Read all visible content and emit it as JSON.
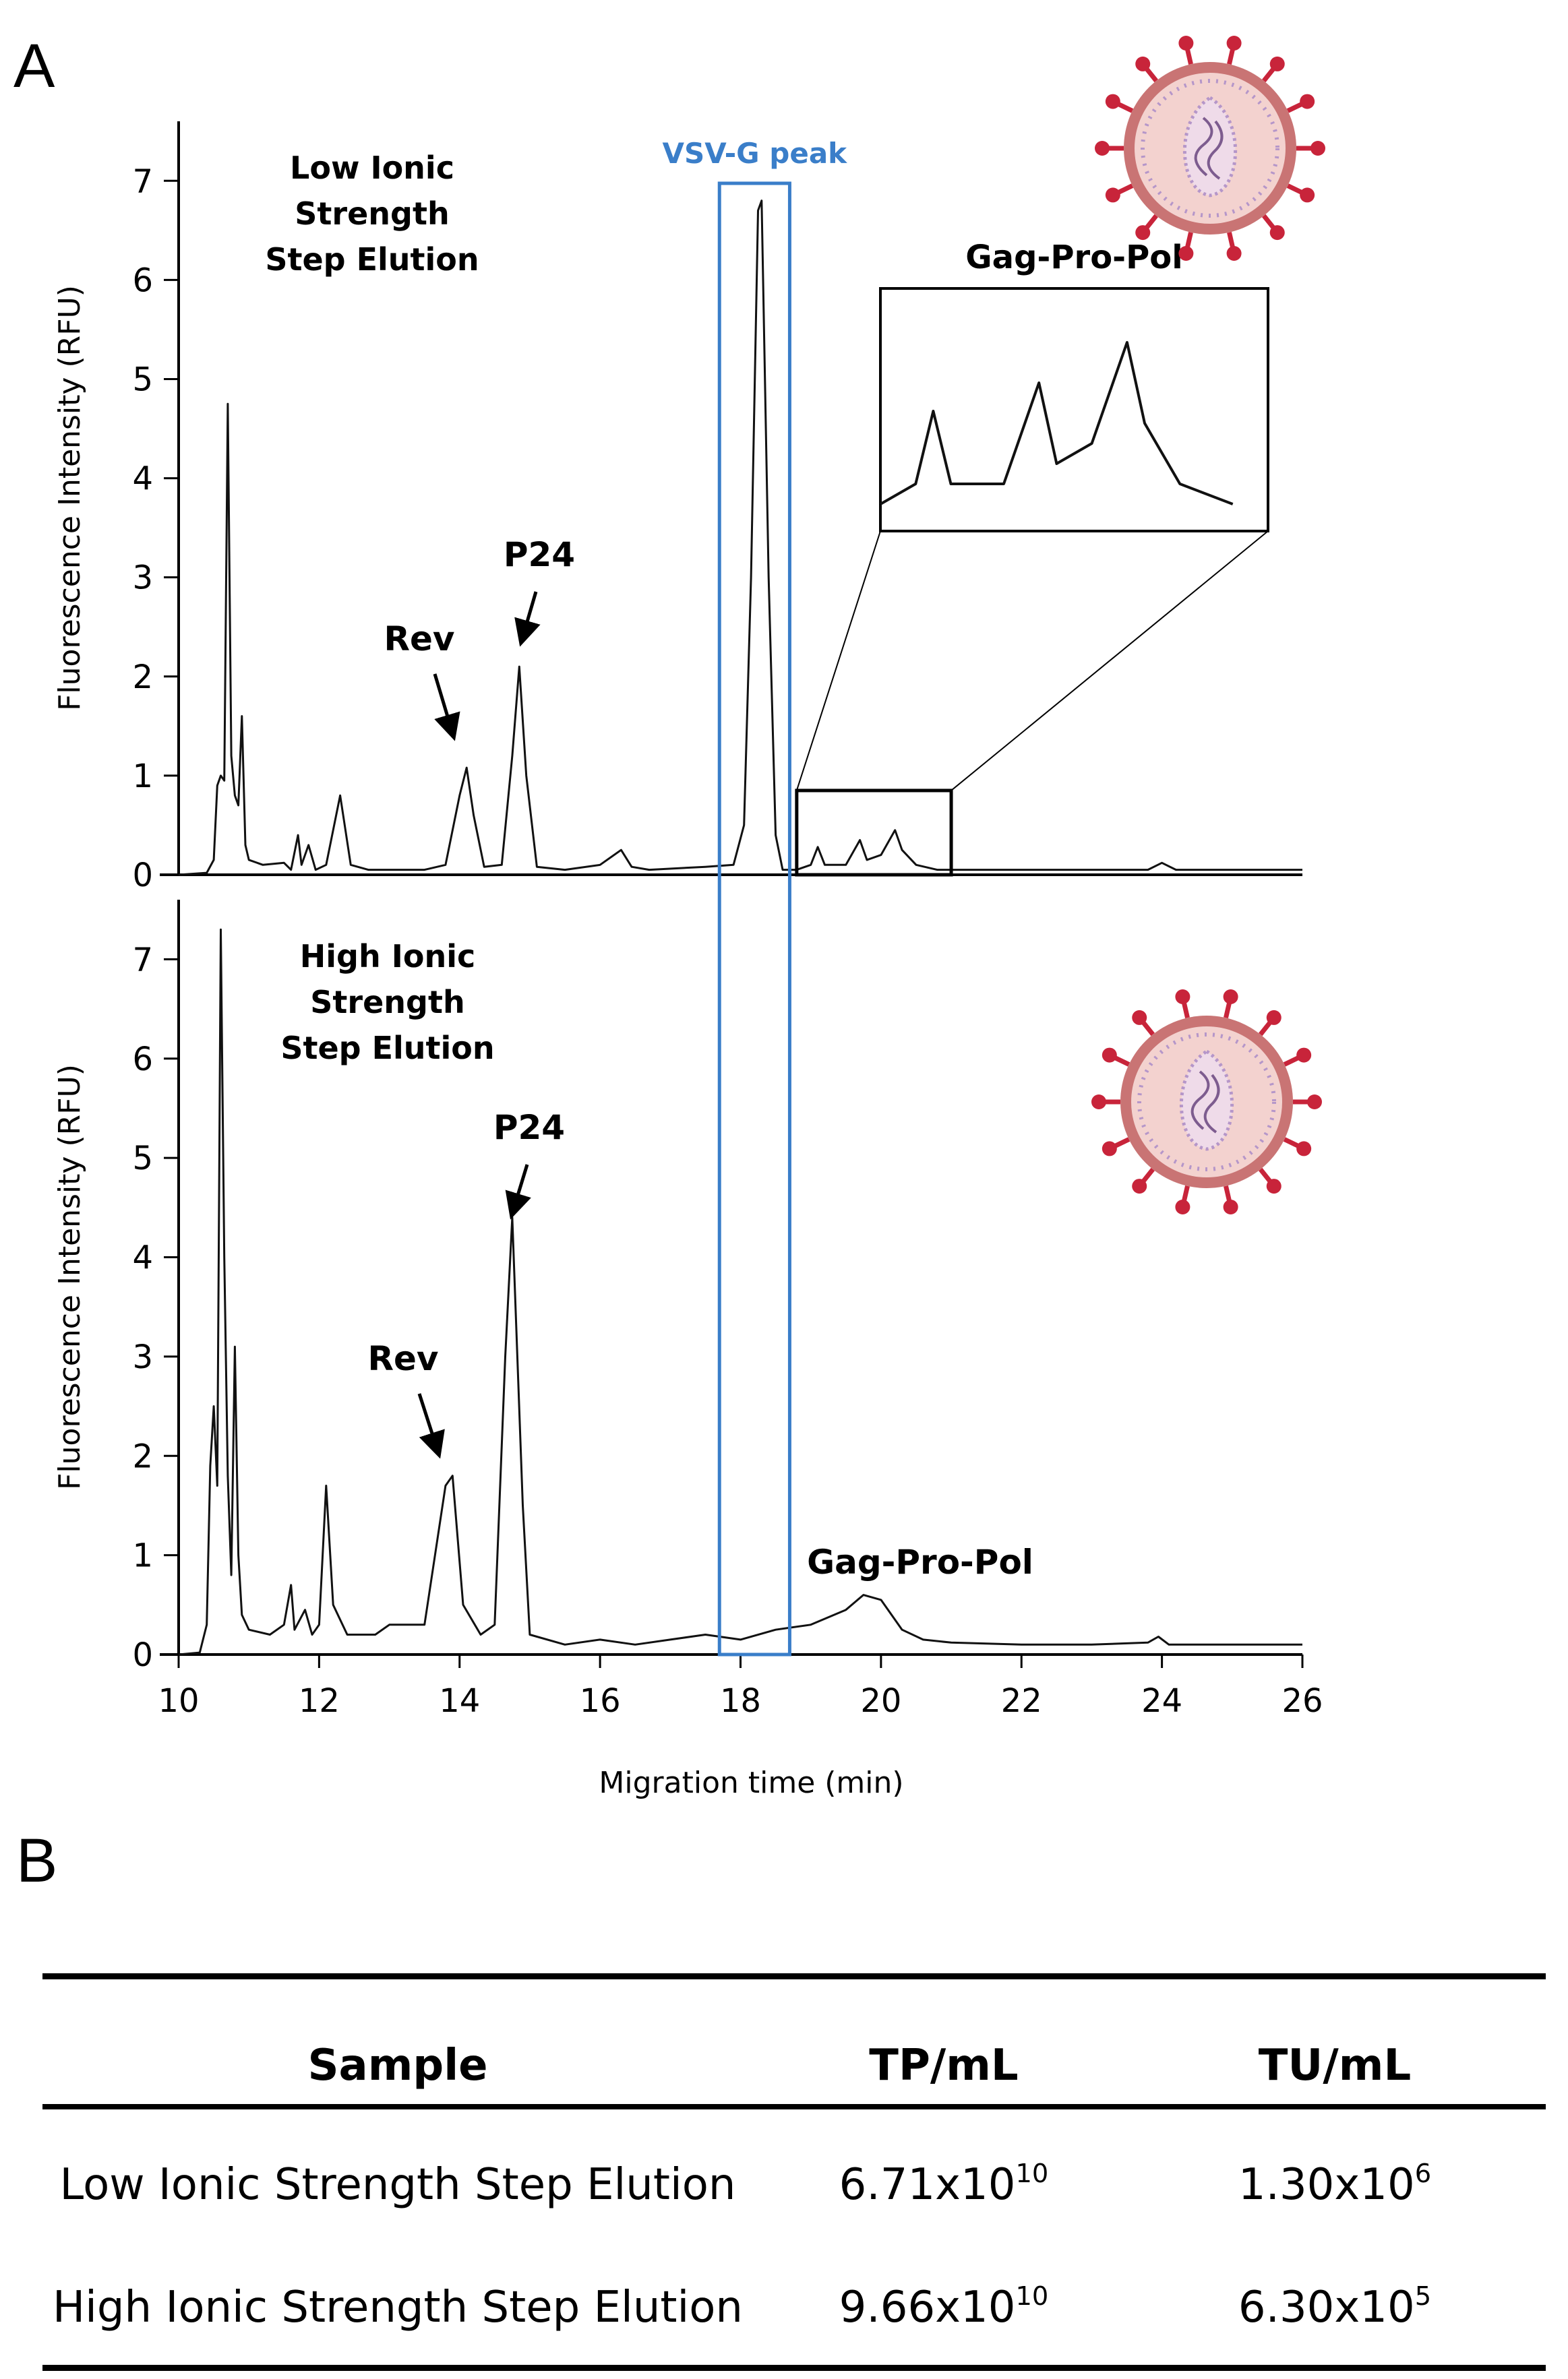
{
  "panel_labels": {
    "a": "A",
    "b": "B"
  },
  "chart_data": [
    {
      "type": "line",
      "panel": "A-top",
      "title": "Low Ionic Strength Step Elution",
      "title_lines": [
        "Low Ionic",
        "Strength",
        "Step Elution"
      ],
      "ylabel": "Fluorescence Intensity (RFU)",
      "xlim": [
        10,
        26
      ],
      "ylim": [
        0,
        7.6
      ],
      "yticks": [
        0,
        1,
        2,
        3,
        4,
        5,
        6,
        7
      ],
      "series": [
        {
          "name": "Low Ionic Strength Step Elution",
          "points": [
            [
              10,
              0
            ],
            [
              10.4,
              0.02
            ],
            [
              10.5,
              0.15
            ],
            [
              10.55,
              0.9
            ],
            [
              10.6,
              1.0
            ],
            [
              10.65,
              0.95
            ],
            [
              10.7,
              4.75
            ],
            [
              10.75,
              1.2
            ],
            [
              10.8,
              0.8
            ],
            [
              10.85,
              0.7
            ],
            [
              10.9,
              1.6
            ],
            [
              10.95,
              0.3
            ],
            [
              11.0,
              0.15
            ],
            [
              11.2,
              0.1
            ],
            [
              11.5,
              0.12
            ],
            [
              11.6,
              0.05
            ],
            [
              11.7,
              0.4
            ],
            [
              11.75,
              0.1
            ],
            [
              11.85,
              0.3
            ],
            [
              11.95,
              0.05
            ],
            [
              12.1,
              0.1
            ],
            [
              12.3,
              0.8
            ],
            [
              12.45,
              0.1
            ],
            [
              12.7,
              0.05
            ],
            [
              13.5,
              0.05
            ],
            [
              13.8,
              0.1
            ],
            [
              14.0,
              0.8
            ],
            [
              14.1,
              1.08
            ],
            [
              14.2,
              0.6
            ],
            [
              14.35,
              0.08
            ],
            [
              14.6,
              0.1
            ],
            [
              14.75,
              1.2
            ],
            [
              14.85,
              2.1
            ],
            [
              14.95,
              1.0
            ],
            [
              15.1,
              0.08
            ],
            [
              15.5,
              0.05
            ],
            [
              16.0,
              0.1
            ],
            [
              16.3,
              0.25
            ],
            [
              16.45,
              0.08
            ],
            [
              16.7,
              0.05
            ],
            [
              17.5,
              0.08
            ],
            [
              17.9,
              0.1
            ],
            [
              18.05,
              0.5
            ],
            [
              18.15,
              3.0
            ],
            [
              18.25,
              6.7
            ],
            [
              18.3,
              6.8
            ],
            [
              18.4,
              3.0
            ],
            [
              18.5,
              0.4
            ],
            [
              18.6,
              0.05
            ],
            [
              18.8,
              0.05
            ],
            [
              19.0,
              0.1
            ],
            [
              19.1,
              0.28
            ],
            [
              19.2,
              0.1
            ],
            [
              19.5,
              0.1
            ],
            [
              19.7,
              0.35
            ],
            [
              19.8,
              0.15
            ],
            [
              20.0,
              0.2
            ],
            [
              20.2,
              0.45
            ],
            [
              20.3,
              0.25
            ],
            [
              20.5,
              0.1
            ],
            [
              20.8,
              0.05
            ],
            [
              21.5,
              0.05
            ],
            [
              23.8,
              0.05
            ],
            [
              24.0,
              0.12
            ],
            [
              24.2,
              0.05
            ],
            [
              26,
              0.05
            ]
          ]
        }
      ],
      "annotations": [
        "Rev",
        "P24"
      ],
      "highlight": {
        "label": "VSV-G peak",
        "x_range": [
          17.7,
          18.7
        ]
      },
      "inset": {
        "title": "Gag-Pro-Pol",
        "x_range": [
          18.8,
          21.0
        ],
        "y_range": [
          0,
          0.85
        ]
      }
    },
    {
      "type": "line",
      "panel": "A-bottom",
      "title": "High Ionic Strength Step Elution",
      "title_lines": [
        "High Ionic",
        "Strength",
        "Step Elution"
      ],
      "ylabel": "Fluorescence Intensity (RFU)",
      "xlabel": "Migration time (min)",
      "xlim": [
        10,
        26
      ],
      "ylim": [
        0,
        7.6
      ],
      "xticks": [
        10,
        12,
        14,
        16,
        18,
        20,
        22,
        24,
        26
      ],
      "yticks": [
        0,
        1,
        2,
        3,
        4,
        5,
        6,
        7
      ],
      "series": [
        {
          "name": "High Ionic Strength Step Elution",
          "points": [
            [
              10,
              0
            ],
            [
              10.3,
              0.02
            ],
            [
              10.4,
              0.3
            ],
            [
              10.45,
              1.9
            ],
            [
              10.5,
              2.5
            ],
            [
              10.55,
              1.7
            ],
            [
              10.6,
              7.3
            ],
            [
              10.65,
              4.0
            ],
            [
              10.7,
              1.8
            ],
            [
              10.75,
              0.8
            ],
            [
              10.8,
              3.1
            ],
            [
              10.85,
              1.0
            ],
            [
              10.9,
              0.4
            ],
            [
              11.0,
              0.25
            ],
            [
              11.3,
              0.2
            ],
            [
              11.5,
              0.3
            ],
            [
              11.6,
              0.7
            ],
            [
              11.65,
              0.25
            ],
            [
              11.8,
              0.45
            ],
            [
              11.9,
              0.2
            ],
            [
              12.0,
              0.3
            ],
            [
              12.1,
              1.7
            ],
            [
              12.2,
              0.5
            ],
            [
              12.4,
              0.2
            ],
            [
              12.8,
              0.2
            ],
            [
              13.0,
              0.3
            ],
            [
              13.5,
              0.3
            ],
            [
              13.8,
              1.7
            ],
            [
              13.9,
              1.8
            ],
            [
              14.05,
              0.5
            ],
            [
              14.3,
              0.2
            ],
            [
              14.5,
              0.3
            ],
            [
              14.65,
              3.0
            ],
            [
              14.75,
              4.4
            ],
            [
              14.9,
              1.5
            ],
            [
              15.0,
              0.2
            ],
            [
              15.5,
              0.1
            ],
            [
              16.0,
              0.15
            ],
            [
              16.5,
              0.1
            ],
            [
              17.0,
              0.15
            ],
            [
              17.5,
              0.2
            ],
            [
              18.0,
              0.15
            ],
            [
              18.5,
              0.25
            ],
            [
              19.0,
              0.3
            ],
            [
              19.5,
              0.45
            ],
            [
              19.75,
              0.6
            ],
            [
              20.0,
              0.55
            ],
            [
              20.3,
              0.25
            ],
            [
              20.6,
              0.15
            ],
            [
              21.0,
              0.12
            ],
            [
              22.0,
              0.1
            ],
            [
              23.0,
              0.1
            ],
            [
              23.8,
              0.12
            ],
            [
              23.95,
              0.18
            ],
            [
              24.1,
              0.1
            ],
            [
              26,
              0.1
            ]
          ]
        }
      ],
      "annotations": [
        "Rev",
        "P24",
        "Gag-Pro-Pol"
      ]
    },
    {
      "type": "table",
      "panel": "B",
      "columns": [
        "Sample",
        "TP/mL",
        "TU/mL"
      ],
      "rows": [
        {
          "sample": "Low Ionic Strength Step Elution",
          "tp_base": "6.71x10",
          "tp_exp": "10",
          "tu_base": "1.30x10",
          "tu_exp": "6"
        },
        {
          "sample": "High Ionic Strength Step Elution",
          "tp_base": "9.66x10",
          "tp_exp": "10",
          "tu_base": "6.30x10",
          "tu_exp": "5"
        }
      ]
    }
  ],
  "colors": {
    "highlight": "#3a7ec9",
    "virion_membrane": "#c97474",
    "virion_fill": "#f3d2cf",
    "spike": "#c8243a",
    "core": "#b596c9"
  },
  "icons": [
    "lentivirus-virion-icon"
  ]
}
